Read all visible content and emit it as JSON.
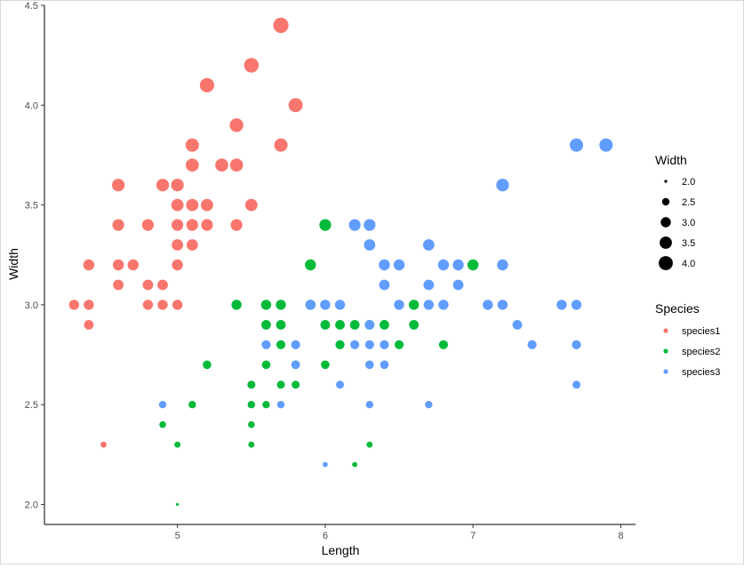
{
  "chart_data": {
    "type": "scatter",
    "xlabel": "Length",
    "ylabel": "Width",
    "xlim": [
      4.1,
      8.1
    ],
    "ylim": [
      1.9,
      4.5
    ],
    "x_ticks": [
      5,
      6,
      7,
      8
    ],
    "y_ticks": [
      2.0,
      2.5,
      3.0,
      3.5,
      4.0,
      4.5
    ],
    "x_tick_labels": [
      "5",
      "6",
      "7",
      "8"
    ],
    "y_tick_labels": [
      "2.0",
      "2.5",
      "3.0",
      "3.5",
      "4.0",
      "4.5"
    ],
    "grid": false,
    "legend_position": "right",
    "size_legend": {
      "title": "Width",
      "values": [
        2.0,
        2.5,
        3.0,
        3.5,
        4.0
      ],
      "labels": [
        "2.0",
        "2.5",
        "3.0",
        "3.5",
        "4.0"
      ]
    },
    "color_legend": {
      "title": "Species",
      "labels": [
        "species1",
        "species2",
        "species3"
      ]
    },
    "colors": {
      "species1": "#F8766D",
      "species2": "#00BA38",
      "species3": "#619CFF"
    },
    "series": [
      {
        "name": "species1",
        "points": [
          [
            4.3,
            3.0
          ],
          [
            4.4,
            3.0
          ],
          [
            4.4,
            2.9
          ],
          [
            4.4,
            3.2
          ],
          [
            4.5,
            2.3
          ],
          [
            4.6,
            3.1
          ],
          [
            4.6,
            3.2
          ],
          [
            4.6,
            3.4
          ],
          [
            4.6,
            3.6
          ],
          [
            4.7,
            3.2
          ],
          [
            4.8,
            3.0
          ],
          [
            4.8,
            3.1
          ],
          [
            4.8,
            3.4
          ],
          [
            4.9,
            3.0
          ],
          [
            4.9,
            3.1
          ],
          [
            4.9,
            3.6
          ],
          [
            5.0,
            3.0
          ],
          [
            5.0,
            3.2
          ],
          [
            5.0,
            3.3
          ],
          [
            5.0,
            3.4
          ],
          [
            5.0,
            3.5
          ],
          [
            5.0,
            3.6
          ],
          [
            5.1,
            3.3
          ],
          [
            5.1,
            3.4
          ],
          [
            5.1,
            3.5
          ],
          [
            5.1,
            3.7
          ],
          [
            5.1,
            3.8
          ],
          [
            5.2,
            3.4
          ],
          [
            5.2,
            3.5
          ],
          [
            5.2,
            4.1
          ],
          [
            5.3,
            3.7
          ],
          [
            5.4,
            3.4
          ],
          [
            5.4,
            3.7
          ],
          [
            5.4,
            3.9
          ],
          [
            5.5,
            3.5
          ],
          [
            5.5,
            4.2
          ],
          [
            5.7,
            3.8
          ],
          [
            5.7,
            4.4
          ],
          [
            5.8,
            4.0
          ]
        ]
      },
      {
        "name": "species2",
        "points": [
          [
            4.9,
            2.4
          ],
          [
            5.0,
            2.0
          ],
          [
            5.0,
            2.3
          ],
          [
            5.1,
            2.5
          ],
          [
            5.2,
            2.7
          ],
          [
            5.4,
            3.0
          ],
          [
            5.5,
            2.3
          ],
          [
            5.5,
            2.4
          ],
          [
            5.5,
            2.5
          ],
          [
            5.5,
            2.6
          ],
          [
            5.6,
            2.5
          ],
          [
            5.6,
            2.7
          ],
          [
            5.6,
            2.9
          ],
          [
            5.6,
            3.0
          ],
          [
            5.7,
            2.6
          ],
          [
            5.7,
            2.8
          ],
          [
            5.7,
            2.9
          ],
          [
            5.7,
            3.0
          ],
          [
            5.8,
            2.6
          ],
          [
            5.8,
            2.7
          ],
          [
            5.9,
            3.0
          ],
          [
            5.9,
            3.2
          ],
          [
            6.0,
            2.7
          ],
          [
            6.0,
            2.9
          ],
          [
            6.0,
            3.4
          ],
          [
            6.1,
            2.8
          ],
          [
            6.1,
            2.9
          ],
          [
            6.2,
            2.2
          ],
          [
            6.2,
            2.9
          ],
          [
            6.3,
            2.3
          ],
          [
            6.3,
            2.9
          ],
          [
            6.4,
            2.9
          ],
          [
            6.5,
            2.8
          ],
          [
            6.6,
            2.9
          ],
          [
            6.6,
            3.0
          ],
          [
            6.8,
            2.8
          ],
          [
            7.0,
            3.2
          ]
        ]
      },
      {
        "name": "species3",
        "points": [
          [
            4.9,
            2.5
          ],
          [
            5.6,
            2.8
          ],
          [
            5.7,
            2.5
          ],
          [
            5.8,
            2.7
          ],
          [
            5.8,
            2.8
          ],
          [
            5.9,
            3.0
          ],
          [
            6.0,
            2.2
          ],
          [
            6.0,
            3.0
          ],
          [
            6.1,
            2.6
          ],
          [
            6.1,
            3.0
          ],
          [
            6.2,
            2.8
          ],
          [
            6.2,
            3.4
          ],
          [
            6.3,
            2.5
          ],
          [
            6.3,
            2.7
          ],
          [
            6.3,
            2.8
          ],
          [
            6.3,
            2.9
          ],
          [
            6.3,
            3.3
          ],
          [
            6.3,
            3.4
          ],
          [
            6.4,
            2.7
          ],
          [
            6.4,
            2.8
          ],
          [
            6.4,
            3.1
          ],
          [
            6.4,
            3.2
          ],
          [
            6.5,
            3.0
          ],
          [
            6.5,
            3.2
          ],
          [
            6.7,
            2.5
          ],
          [
            6.7,
            3.0
          ],
          [
            6.7,
            3.1
          ],
          [
            6.7,
            3.3
          ],
          [
            6.8,
            3.0
          ],
          [
            6.8,
            3.2
          ],
          [
            6.9,
            3.1
          ],
          [
            6.9,
            3.2
          ],
          [
            7.1,
            3.0
          ],
          [
            7.2,
            3.0
          ],
          [
            7.2,
            3.2
          ],
          [
            7.2,
            3.6
          ],
          [
            7.3,
            2.9
          ],
          [
            7.4,
            2.8
          ],
          [
            7.6,
            3.0
          ],
          [
            7.7,
            2.6
          ],
          [
            7.7,
            2.8
          ],
          [
            7.7,
            3.0
          ],
          [
            7.7,
            3.8
          ],
          [
            7.9,
            3.8
          ]
        ]
      }
    ]
  }
}
